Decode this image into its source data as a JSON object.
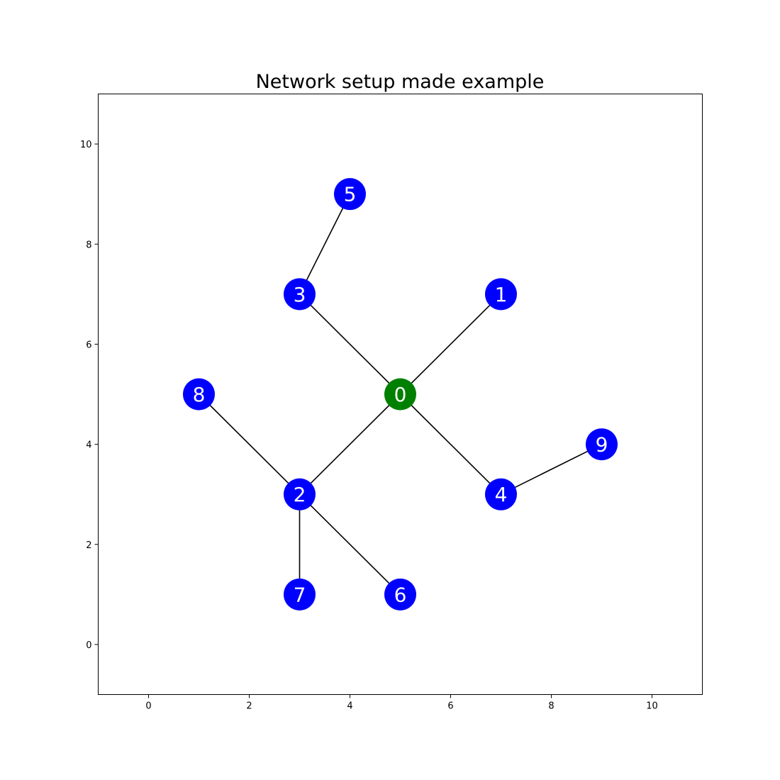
{
  "chart_data": {
    "type": "scatter",
    "title": "Network setup made example",
    "xlabel": "",
    "ylabel": "",
    "xlim": [
      -1,
      11
    ],
    "ylim": [
      -1,
      11
    ],
    "xticks": [
      0,
      2,
      4,
      6,
      8,
      10
    ],
    "yticks": [
      0,
      2,
      4,
      6,
      8,
      10
    ],
    "grid": false,
    "nodes": [
      {
        "id": "0",
        "x": 5,
        "y": 5,
        "color": "#008000"
      },
      {
        "id": "1",
        "x": 7,
        "y": 7,
        "color": "#0000ff"
      },
      {
        "id": "2",
        "x": 3,
        "y": 3,
        "color": "#0000ff"
      },
      {
        "id": "3",
        "x": 3,
        "y": 7,
        "color": "#0000ff"
      },
      {
        "id": "4",
        "x": 7,
        "y": 3,
        "color": "#0000ff"
      },
      {
        "id": "5",
        "x": 4,
        "y": 9,
        "color": "#0000ff"
      },
      {
        "id": "6",
        "x": 5,
        "y": 1,
        "color": "#0000ff"
      },
      {
        "id": "7",
        "x": 3,
        "y": 1,
        "color": "#0000ff"
      },
      {
        "id": "8",
        "x": 1,
        "y": 5,
        "color": "#0000ff"
      },
      {
        "id": "9",
        "x": 9,
        "y": 4,
        "color": "#0000ff"
      }
    ],
    "edges": [
      [
        "0",
        "1"
      ],
      [
        "0",
        "2"
      ],
      [
        "0",
        "3"
      ],
      [
        "0",
        "4"
      ],
      [
        "3",
        "5"
      ],
      [
        "2",
        "6"
      ],
      [
        "2",
        "7"
      ],
      [
        "2",
        "8"
      ],
      [
        "4",
        "9"
      ]
    ]
  }
}
